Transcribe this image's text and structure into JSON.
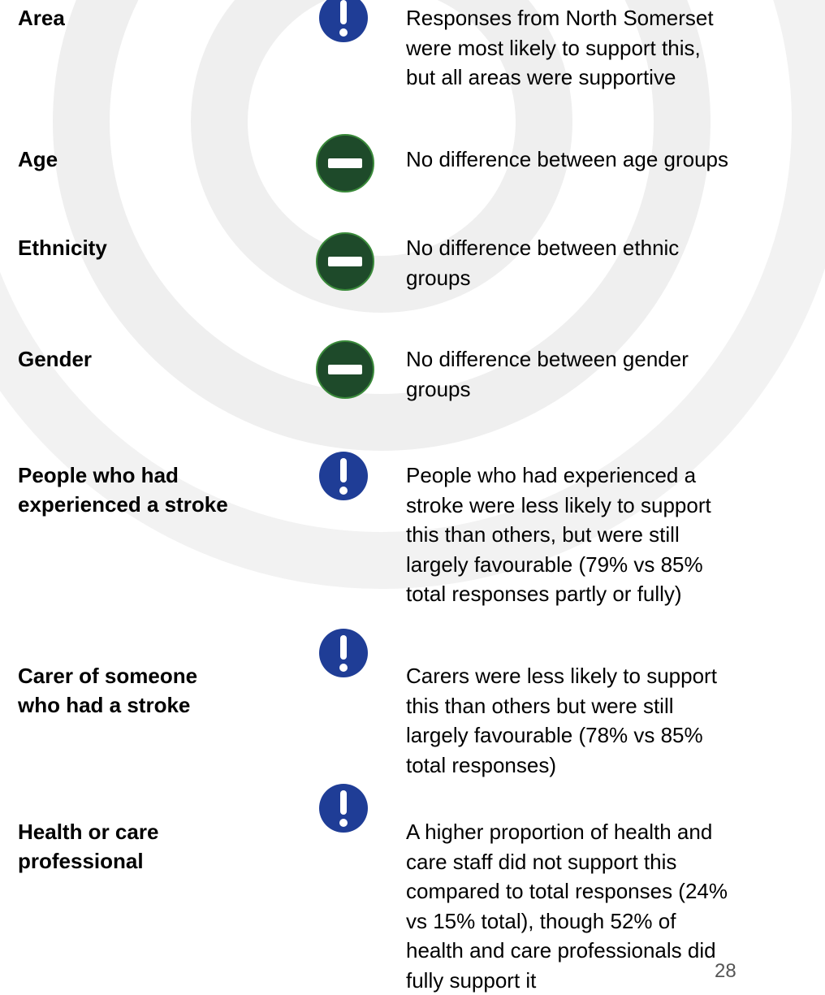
{
  "rows": [
    {
      "label": [
        "Area"
      ],
      "text": [
        "Responses from North Somerset",
        "were most likely to support this,",
        "but all areas were supportive"
      ]
    },
    {
      "label": [
        "Age"
      ],
      "text": [
        "No difference between age groups"
      ]
    },
    {
      "label": [
        "Ethnicity"
      ],
      "text": [
        "No difference between ethnic",
        "groups"
      ]
    },
    {
      "label": [
        "Gender"
      ],
      "text": [
        "No difference between gender",
        "groups"
      ]
    },
    {
      "label": [
        "People who had",
        "experienced a stroke"
      ],
      "text": [
        "People who had experienced a",
        "stroke were less likely to support",
        "this than others, but were still",
        "largely favourable (79% vs 85%",
        "total responses partly or fully)"
      ]
    },
    {
      "label": [
        "Carer of someone",
        "who had a stroke"
      ],
      "text": [
        "Carers were less likely to support",
        "this than others but were still",
        "largely favourable (78% vs 85%",
        "total responses)"
      ]
    },
    {
      "label": [
        "Health or care",
        "professional"
      ],
      "text": [
        "A higher proportion of health and",
        "care staff did not support this",
        "compared to total responses (24%",
        "vs 15% total), though 52% of",
        "health and care professionals did",
        "fully support it"
      ]
    }
  ],
  "page_number": "28"
}
